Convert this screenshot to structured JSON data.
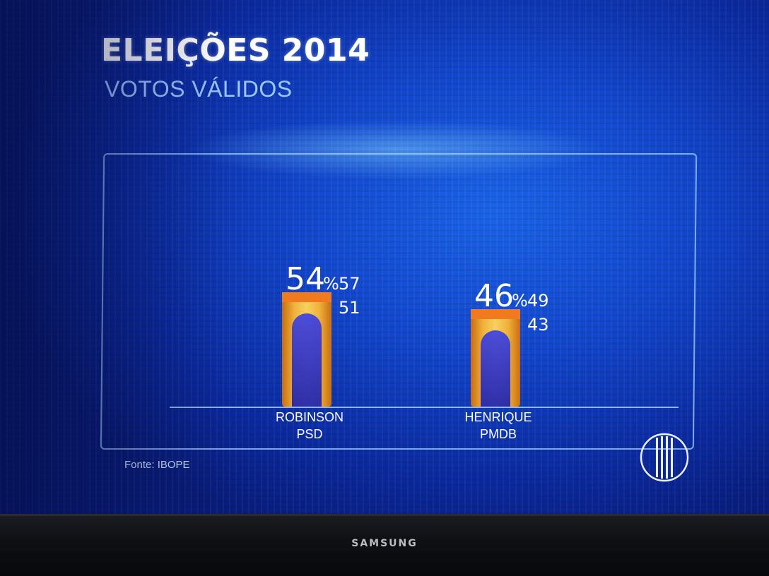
{
  "header": {
    "title": "ELEIÇÕES 2014",
    "subtitle": "VOTOS VÁLIDOS"
  },
  "footer": {
    "source": "Fonte: IBOPE",
    "brand": "SAMSUNG"
  },
  "colors": {
    "bar_top": "#f07a1e",
    "bar_body": "#e89a2a",
    "bar_inner": "#2a2bd8",
    "panel_border": "#a0d2ff"
  },
  "chart_data": {
    "type": "bar",
    "title": "ELEIÇÕES 2014",
    "subtitle": "VOTOS VÁLIDOS",
    "categories": [
      "ROBINSON\nPSD",
      "HENRIQUE\nPMDB"
    ],
    "candidates": [
      {
        "name": "ROBINSON",
        "party": "PSD",
        "value": 54,
        "upper": 57,
        "lower": 51
      },
      {
        "name": "HENRIQUE",
        "party": "PMDB",
        "value": 46,
        "upper": 49,
        "lower": 43
      }
    ],
    "values": [
      54,
      46
    ],
    "unit": "%",
    "ylim": [
      0,
      100
    ],
    "grid": false,
    "legend": "none"
  }
}
